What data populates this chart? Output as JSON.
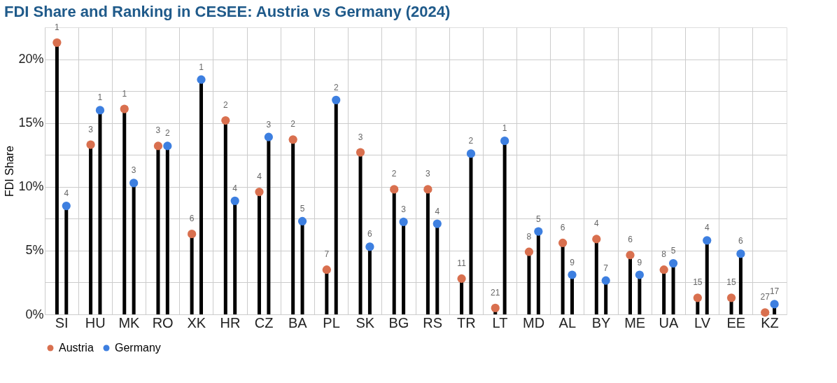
{
  "chart_data": {
    "type": "lollipop",
    "title": "FDI Share and Ranking in CESEE: Austria vs Germany (2024)",
    "ylabel": "FDI Share",
    "categories": [
      "SI",
      "HU",
      "MK",
      "RO",
      "XK",
      "HR",
      "CZ",
      "BA",
      "PL",
      "SK",
      "BG",
      "RS",
      "TR",
      "LT",
      "MD",
      "AL",
      "BY",
      "ME",
      "UA",
      "LV",
      "EE",
      "KZ"
    ],
    "series": [
      {
        "name": "Austria",
        "color": "#d9704f",
        "values": [
          21.3,
          13.3,
          16.1,
          13.2,
          6.3,
          15.2,
          9.6,
          13.7,
          3.5,
          12.7,
          9.8,
          9.8,
          2.8,
          0.5,
          4.9,
          5.6,
          5.9,
          4.65,
          3.5,
          1.3,
          1.3,
          0.15
        ]
      },
      {
        "name": "Germany",
        "color": "#3d7fe0",
        "values": [
          8.5,
          16.0,
          10.3,
          13.2,
          18.4,
          8.9,
          13.9,
          7.3,
          16.8,
          5.3,
          7.25,
          7.1,
          12.6,
          13.6,
          6.5,
          3.1,
          2.65,
          3.1,
          4.0,
          5.8,
          4.75,
          0.8
        ]
      }
    ],
    "annotations": [
      {
        "text": "1",
        "x": "SI",
        "y": 21.3
      },
      {
        "text": "4",
        "x": "SI",
        "y": 8.5
      },
      {
        "text": "3",
        "x": "HU",
        "y": 13.3
      },
      {
        "text": "1",
        "x": "HU",
        "y": 16.0
      },
      {
        "text": "1",
        "x": "MK",
        "y": 16.1
      },
      {
        "text": "3",
        "x": "MK",
        "y": 10.3
      },
      {
        "text": "3",
        "x": "RO",
        "y": 13.2
      },
      {
        "text": "2",
        "x": "RO",
        "y": 13.2
      },
      {
        "text": "6",
        "x": "XK",
        "y": 6.3
      },
      {
        "text": "1",
        "x": "XK",
        "y": 18.4
      },
      {
        "text": "2",
        "x": "HR",
        "y": 15.2
      },
      {
        "text": "4",
        "x": "HR",
        "y": 8.9
      },
      {
        "text": "4",
        "x": "CZ",
        "y": 9.6
      },
      {
        "text": "3",
        "x": "CZ",
        "y": 13.9
      },
      {
        "text": "2",
        "x": "BA",
        "y": 13.7
      },
      {
        "text": "5",
        "x": "BA",
        "y": 7.3
      },
      {
        "text": "7",
        "x": "PL",
        "y": 3.5
      },
      {
        "text": "2",
        "x": "PL",
        "y": 16.8
      },
      {
        "text": "3",
        "x": "SK",
        "y": 12.7
      },
      {
        "text": "6",
        "x": "SK",
        "y": 5.3
      },
      {
        "text": "2",
        "x": "BG",
        "y": 9.8
      },
      {
        "text": "3",
        "x": "BG",
        "y": 7.25
      },
      {
        "text": "3",
        "x": "RS",
        "y": 9.8
      },
      {
        "text": "4",
        "x": "RS",
        "y": 7.1
      },
      {
        "text": "11",
        "x": "TR",
        "y": 2.8
      },
      {
        "text": "2",
        "x": "TR",
        "y": 12.6
      },
      {
        "text": "21",
        "x": "LT",
        "y": 0.5
      },
      {
        "text": "1",
        "x": "LT",
        "y": 13.6
      },
      {
        "text": "8",
        "x": "MD",
        "y": 4.9
      },
      {
        "text": "5",
        "x": "MD",
        "y": 6.5
      },
      {
        "text": "6",
        "x": "AL",
        "y": 5.6
      },
      {
        "text": "9",
        "x": "AL",
        "y": 3.1
      },
      {
        "text": "4",
        "x": "BY",
        "y": 5.9
      },
      {
        "text": "7",
        "x": "BY",
        "y": 2.65
      },
      {
        "text": "6",
        "x": "ME",
        "y": 4.65
      },
      {
        "text": "9",
        "x": "ME",
        "y": 3.1
      },
      {
        "text": "8",
        "x": "UA",
        "y": 3.5
      },
      {
        "text": "5",
        "x": "UA",
        "y": 4.0
      },
      {
        "text": "15",
        "x": "LV",
        "y": 1.3
      },
      {
        "text": "4",
        "x": "LV",
        "y": 5.8
      },
      {
        "text": "15",
        "x": "EE",
        "y": 1.3
      },
      {
        "text": "6",
        "x": "EE",
        "y": 4.75
      },
      {
        "text": "27",
        "x": "KZ",
        "y": 0.15
      },
      {
        "text": "17",
        "x": "KZ",
        "y": 0.8
      }
    ],
    "ylim": [
      0,
      22.5
    ],
    "yticks": [
      {
        "value": 0,
        "label": "0%"
      },
      {
        "value": 2.5,
        "label": null
      },
      {
        "value": 5,
        "label": "5%"
      },
      {
        "value": 7.5,
        "label": null
      },
      {
        "value": 10,
        "label": "10%"
      },
      {
        "value": 12.5,
        "label": null
      },
      {
        "value": 15,
        "label": "15%"
      },
      {
        "value": 17.5,
        "label": null
      },
      {
        "value": 20,
        "label": "20%"
      }
    ],
    "grid": true,
    "legend": "bottom left",
    "marker": "circle"
  }
}
